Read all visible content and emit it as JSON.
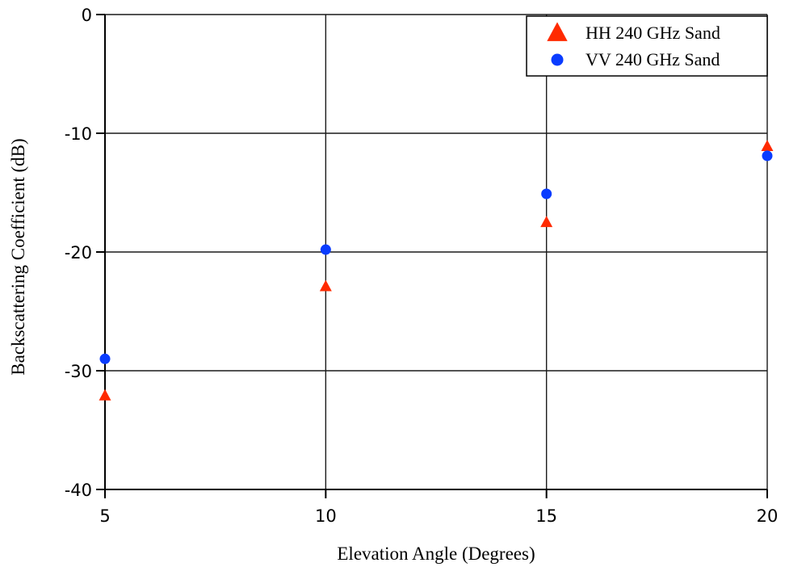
{
  "chart_data": {
    "type": "scatter",
    "title": "",
    "xlabel": "Elevation Angle (Degrees)",
    "ylabel": "Backscattering Coefficient (dB)",
    "xlim": [
      5,
      20
    ],
    "ylim": [
      -40,
      0
    ],
    "xticks": [
      5,
      10,
      15,
      20
    ],
    "yticks": [
      0,
      -10,
      -20,
      -30,
      -40
    ],
    "grid": true,
    "legend_position": "top-right",
    "series": [
      {
        "name": "HH 240 GHz Sand",
        "marker": "triangle",
        "color": "#ff2a00",
        "x": [
          5,
          10,
          15,
          20
        ],
        "y": [
          -32.1,
          -22.9,
          -17.5,
          -11.1
        ]
      },
      {
        "name": "VV 240 GHz Sand",
        "marker": "circle",
        "color": "#0a3cff",
        "x": [
          5,
          10,
          15,
          20
        ],
        "y": [
          -29.0,
          -19.8,
          -15.1,
          -11.9
        ]
      }
    ]
  }
}
